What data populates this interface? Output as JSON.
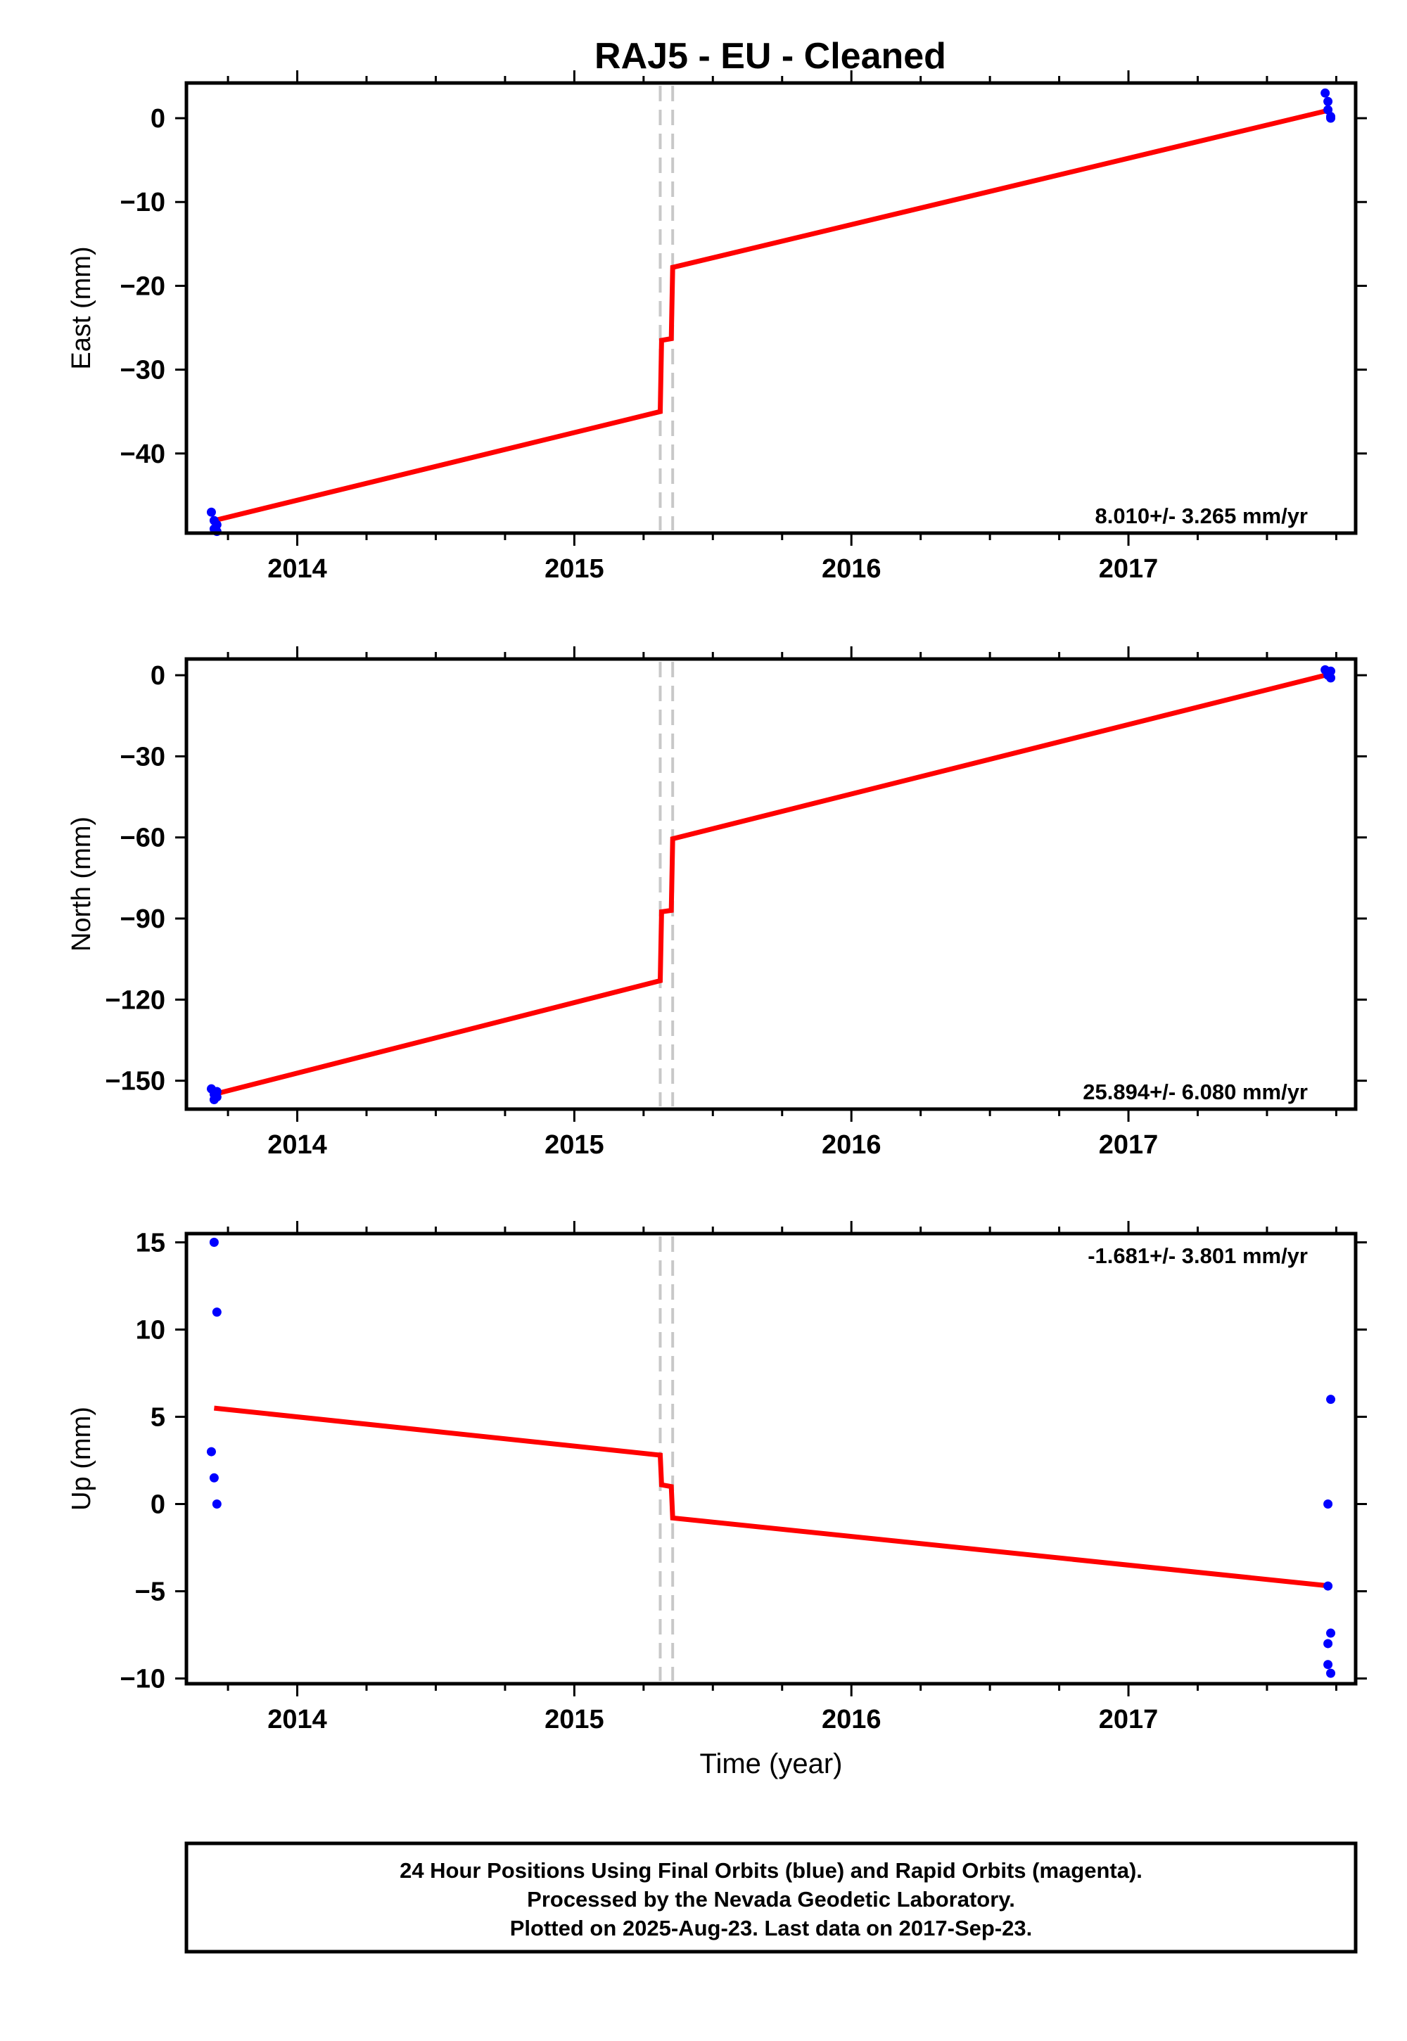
{
  "title": "RAJ5  - EU - Cleaned",
  "colors": {
    "final_orbits": "#0000ff",
    "rapid_orbits": "#ff00ff",
    "model": "#ff0000",
    "event_lines": "#c8c8c8"
  },
  "footer": {
    "lines": [
      "24 Hour Positions Using Final Orbits (blue) and Rapid Orbits (magenta).",
      "Processed by the Nevada Geodetic Laboratory.",
      "Plotted on 2025-Aug-23. Last data on 2017-Sep-23."
    ]
  },
  "chart_data": [
    {
      "type": "scatter",
      "name": "east",
      "ylabel": "East (mm)",
      "xlabel": "",
      "xlim": [
        2013.6,
        2017.82
      ],
      "ylim": [
        -49.5,
        4.2
      ],
      "xticks": [
        2014,
        2015,
        2016,
        2017
      ],
      "xtick_labels": [
        "2014",
        "2015",
        "2016",
        "2017"
      ],
      "yticks": [
        0,
        -10,
        -20,
        -30,
        -40
      ],
      "ytick_labels": [
        "0",
        "−10",
        "−20",
        "−30",
        "−40"
      ],
      "rate": "8.010+/- 3.265 mm/yr",
      "rate_position": "bottom-right",
      "event_lines": [
        2015.31,
        2015.355
      ],
      "points": {
        "x": [
          2013.69,
          2013.7,
          2013.7,
          2013.71,
          2013.71,
          2017.71,
          2017.72,
          2017.72,
          2017.73,
          2017.73
        ],
        "y": [
          -47,
          -48,
          -49,
          -48.5,
          -49.3,
          3,
          2,
          1,
          0.2,
          0
        ]
      },
      "model": {
        "x": [
          2013.7,
          2015.31,
          2015.315,
          2015.35,
          2015.355,
          2017.73
        ],
        "y": [
          -48,
          -35,
          -26.5,
          -26.3,
          -17.8,
          1
        ]
      }
    },
    {
      "type": "scatter",
      "name": "north",
      "ylabel": "North (mm)",
      "xlabel": "",
      "xlim": [
        2013.6,
        2017.82
      ],
      "ylim": [
        -160.5,
        6
      ],
      "xticks": [
        2014,
        2015,
        2016,
        2017
      ],
      "xtick_labels": [
        "2014",
        "2015",
        "2016",
        "2017"
      ],
      "yticks": [
        0,
        -30,
        -60,
        -90,
        -120,
        -150
      ],
      "ytick_labels": [
        "0",
        "−30",
        "−60",
        "−90",
        "−120",
        "−150"
      ],
      "rate": "25.894+/- 6.080 mm/yr",
      "rate_position": "bottom-right",
      "event_lines": [
        2015.31,
        2015.355
      ],
      "points": {
        "x": [
          2013.69,
          2013.7,
          2013.7,
          2013.71,
          2013.71,
          2017.71,
          2017.72,
          2017.72,
          2017.73,
          2017.73
        ],
        "y": [
          -153,
          -155,
          -157,
          -154,
          -156,
          2,
          1,
          0,
          -1,
          1.5
        ]
      },
      "model": {
        "x": [
          2013.7,
          2015.31,
          2015.315,
          2015.35,
          2015.355,
          2017.73
        ],
        "y": [
          -155,
          -113,
          -87.5,
          -87,
          -60.5,
          0.5
        ]
      }
    },
    {
      "type": "scatter",
      "name": "up",
      "ylabel": "Up (mm)",
      "xlabel": "Time (year)",
      "xlim": [
        2013.6,
        2017.82
      ],
      "ylim": [
        -10.3,
        15.5
      ],
      "xticks": [
        2014,
        2015,
        2016,
        2017
      ],
      "xtick_labels": [
        "2014",
        "2015",
        "2016",
        "2017"
      ],
      "yticks": [
        15,
        10,
        5,
        0,
        -5,
        -10
      ],
      "ytick_labels": [
        "15",
        "10",
        "5",
        "0",
        "−5",
        "−10"
      ],
      "rate": "-1.681+/- 3.801 mm/yr",
      "rate_position": "top-right",
      "event_lines": [
        2015.31,
        2015.355
      ],
      "points": {
        "x": [
          2013.7,
          2013.71,
          2013.69,
          2013.7,
          2013.71,
          2017.73,
          2017.72,
          2017.72,
          2017.73,
          2017.72,
          2017.72,
          2017.73
        ],
        "y": [
          15,
          11,
          3,
          1.5,
          0,
          6,
          0,
          -4.7,
          -7.4,
          -8,
          -9.2,
          -9.7
        ]
      },
      "model": {
        "x": [
          2013.7,
          2015.31,
          2015.315,
          2015.35,
          2015.355,
          2017.73
        ],
        "y": [
          5.5,
          2.8,
          1.1,
          1.0,
          -0.8,
          -4.7
        ]
      }
    }
  ]
}
